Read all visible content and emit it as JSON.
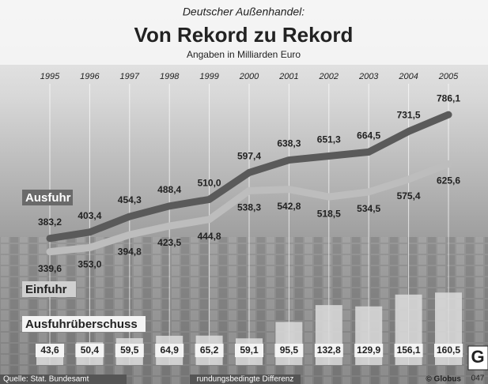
{
  "chart_data": {
    "type": "line",
    "kicker": "Deutscher Außenhandel:",
    "title": "Von Rekord zu Rekord",
    "subtitle": "Angaben in Milliarden Euro",
    "categories": [
      "1995",
      "1996",
      "1997",
      "1998",
      "1999",
      "2000",
      "2001",
      "2002",
      "2003",
      "2004",
      "2005"
    ],
    "ylim": [
      -50,
      1000
    ],
    "y2lim": [
      0,
      350
    ],
    "series": [
      {
        "name": "Ausfuhr",
        "color": "#5a5a5a",
        "values": [
          383.2,
          403.4,
          454.3,
          488.4,
          510.0,
          597.4,
          638.3,
          651.3,
          664.5,
          731.5,
          786.1
        ],
        "value_labels": [
          "383,2",
          "403,4",
          "454,3",
          "488,4",
          "510,0",
          "597,4",
          "638,3",
          "651,3",
          "664,5",
          "731,5",
          "786,1"
        ]
      },
      {
        "name": "Einfuhr",
        "color": "#bdbdbd",
        "values": [
          339.6,
          353.0,
          394.8,
          423.5,
          444.8,
          538.3,
          542.8,
          518.5,
          534.5,
          575.4,
          625.6
        ],
        "value_labels": [
          "339,6",
          "353,0",
          "394,8",
          "423,5",
          "444,8",
          "538,3",
          "542,8",
          "518,5",
          "534,5",
          "575,4",
          "625,6"
        ]
      },
      {
        "name": "Ausfuhrüberschuss",
        "type": "bar",
        "axis": "y2",
        "color": "#dcdcdc",
        "values": [
          43.6,
          50.4,
          59.5,
          64.9,
          65.2,
          59.1,
          95.5,
          132.8,
          129.9,
          156.1,
          160.5
        ],
        "value_labels": [
          "43,6",
          "50,4",
          "59,5",
          "64,9",
          "65,2",
          "59,1",
          "95,5",
          "132,8",
          "129,9",
          "156,1",
          "160,5"
        ]
      }
    ],
    "source": "Quelle: Stat. Bundesamt",
    "note": "rundungsbedingte Differenz",
    "credit": "© Globus",
    "logo": "G",
    "code": "047"
  }
}
